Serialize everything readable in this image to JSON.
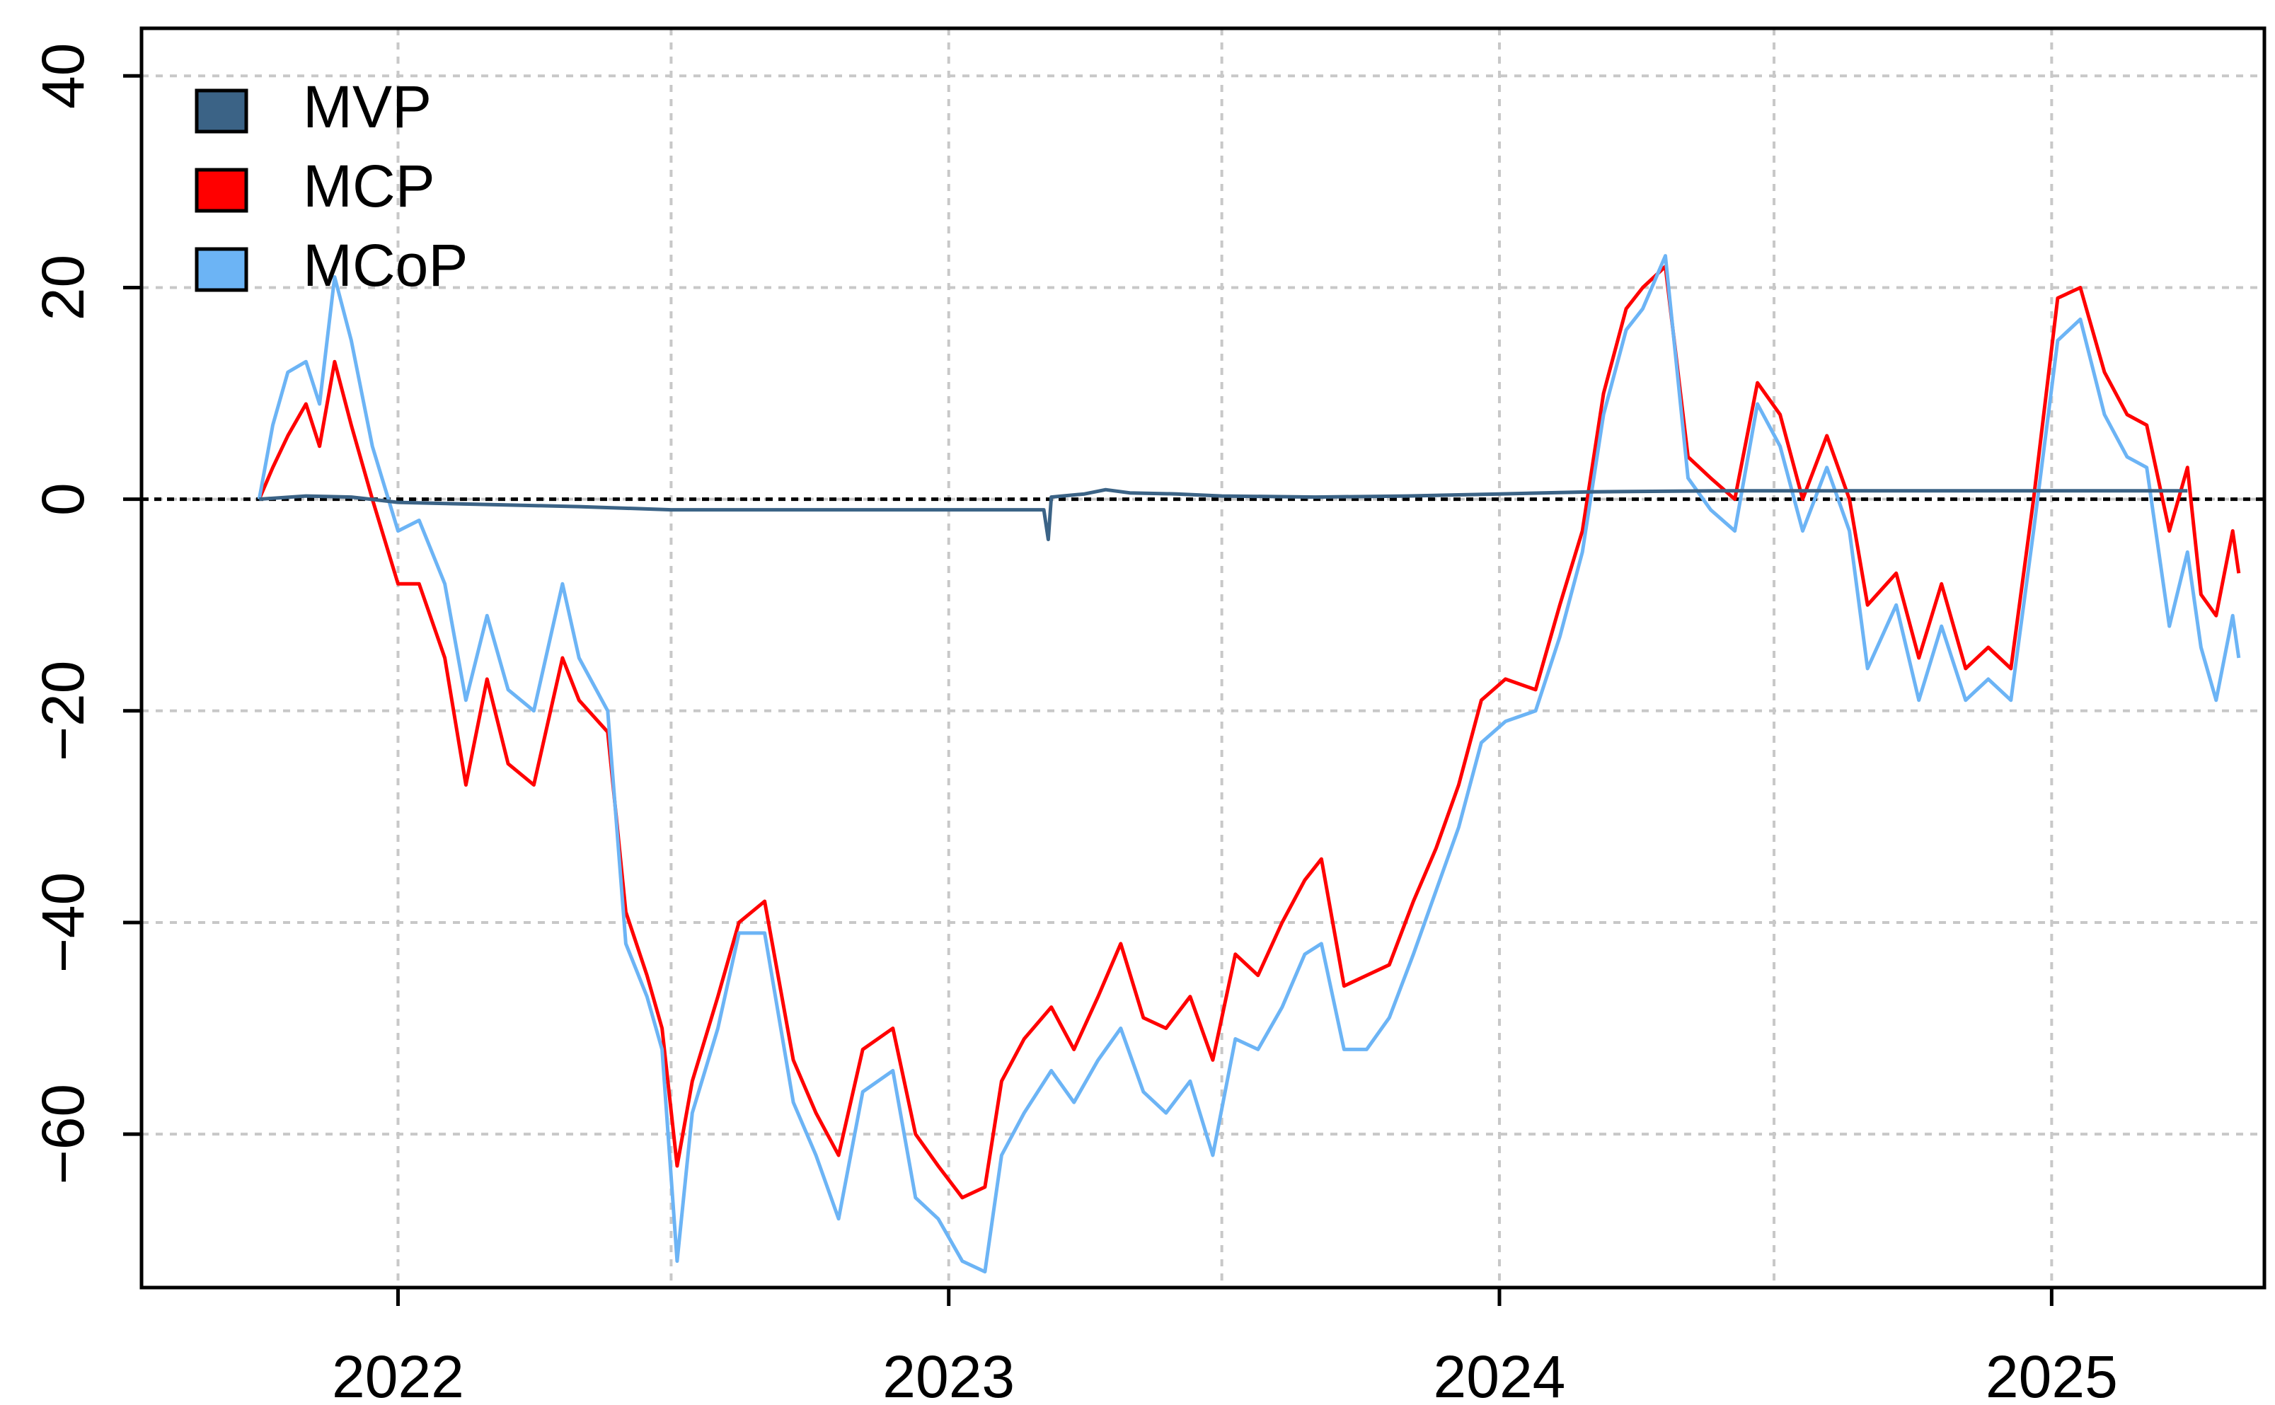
{
  "chart_data": {
    "type": "line",
    "title": "",
    "xlabel": "",
    "ylabel": "",
    "xlim": [
      "2021-07-15",
      "2025-05-22"
    ],
    "ylim": [
      -74.5,
      44.5
    ],
    "x_ticks": [
      "2022",
      "2023",
      "2024",
      "2025"
    ],
    "y_ticks": [
      40,
      20,
      0,
      -20,
      -40,
      -60
    ],
    "y_tick_labels": [
      "40",
      "20",
      "0",
      "−20",
      "−40",
      "−60"
    ],
    "grid": true,
    "legend_position": "top-left",
    "reference_line": 0,
    "series": [
      {
        "name": "MVP",
        "color": "#3B6386",
        "points": [
          [
            "2021-10-01",
            0.0
          ],
          [
            "2021-11-01",
            0.3
          ],
          [
            "2021-12-01",
            0.2
          ],
          [
            "2022-01-01",
            -0.3
          ],
          [
            "2022-03-01",
            -0.5
          ],
          [
            "2022-05-01",
            -0.7
          ],
          [
            "2022-07-01",
            -1.0
          ],
          [
            "2022-09-01",
            -1.0
          ],
          [
            "2022-11-01",
            -1.0
          ],
          [
            "2023-01-01",
            -1.0
          ],
          [
            "2023-03-05",
            -1.0
          ],
          [
            "2023-03-08",
            -3.8
          ],
          [
            "2023-03-10",
            0.2
          ],
          [
            "2023-04-01",
            0.5
          ],
          [
            "2023-04-15",
            0.9
          ],
          [
            "2023-05-01",
            0.6
          ],
          [
            "2023-06-01",
            0.5
          ],
          [
            "2023-07-01",
            0.3
          ],
          [
            "2023-09-01",
            0.2
          ],
          [
            "2023-11-01",
            0.3
          ],
          [
            "2024-01-01",
            0.5
          ],
          [
            "2024-03-01",
            0.7
          ],
          [
            "2024-06-01",
            0.8
          ],
          [
            "2024-09-01",
            0.8
          ],
          [
            "2024-12-01",
            0.8
          ],
          [
            "2025-02-01",
            0.8
          ],
          [
            "2025-04-01",
            0.8
          ]
        ]
      },
      {
        "name": "MCP",
        "color": "#FF0000",
        "points": [
          [
            "2021-10-01",
            0.0
          ],
          [
            "2021-10-10",
            3.0
          ],
          [
            "2021-10-20",
            6.0
          ],
          [
            "2021-11-01",
            9.0
          ],
          [
            "2021-11-10",
            5.0
          ],
          [
            "2021-11-20",
            13.0
          ],
          [
            "2021-12-01",
            7.0
          ],
          [
            "2021-12-15",
            0.0
          ],
          [
            "2022-01-01",
            -8.0
          ],
          [
            "2022-01-15",
            -8.0
          ],
          [
            "2022-02-01",
            -15.0
          ],
          [
            "2022-02-15",
            -27.0
          ],
          [
            "2022-03-01",
            -17.0
          ],
          [
            "2022-03-15",
            -25.0
          ],
          [
            "2022-04-01",
            -27.0
          ],
          [
            "2022-04-20",
            -15.0
          ],
          [
            "2022-05-01",
            -19.0
          ],
          [
            "2022-05-20",
            -22.0
          ],
          [
            "2022-06-01",
            -39.0
          ],
          [
            "2022-06-15",
            -45.0
          ],
          [
            "2022-06-25",
            -50.0
          ],
          [
            "2022-07-05",
            -63.0
          ],
          [
            "2022-07-15",
            -55.0
          ],
          [
            "2022-08-01",
            -47.0
          ],
          [
            "2022-08-15",
            -40.0
          ],
          [
            "2022-09-01",
            -38.0
          ],
          [
            "2022-09-20",
            -53.0
          ],
          [
            "2022-10-05",
            -58.0
          ],
          [
            "2022-10-20",
            -62.0
          ],
          [
            "2022-11-05",
            -52.0
          ],
          [
            "2022-11-25",
            -50.0
          ],
          [
            "2022-12-10",
            -60.0
          ],
          [
            "2022-12-25",
            -63.0
          ],
          [
            "2023-01-10",
            -66.0
          ],
          [
            "2023-01-25",
            -65.0
          ],
          [
            "2023-02-05",
            -55.0
          ],
          [
            "2023-02-20",
            -51.0
          ],
          [
            "2023-03-10",
            -48.0
          ],
          [
            "2023-03-25",
            -52.0
          ],
          [
            "2023-04-10",
            -47.0
          ],
          [
            "2023-04-25",
            -42.0
          ],
          [
            "2023-05-10",
            -49.0
          ],
          [
            "2023-05-25",
            -50.0
          ],
          [
            "2023-06-10",
            -47.0
          ],
          [
            "2023-06-25",
            -53.0
          ],
          [
            "2023-07-10",
            -43.0
          ],
          [
            "2023-07-25",
            -45.0
          ],
          [
            "2023-08-10",
            -40.0
          ],
          [
            "2023-08-25",
            -36.0
          ],
          [
            "2023-09-05",
            -34.0
          ],
          [
            "2023-09-20",
            -46.0
          ],
          [
            "2023-10-05",
            -45.0
          ],
          [
            "2023-10-20",
            -44.0
          ],
          [
            "2023-11-05",
            -38.0
          ],
          [
            "2023-11-20",
            -33.0
          ],
          [
            "2023-12-05",
            -27.0
          ],
          [
            "2023-12-20",
            -19.0
          ],
          [
            "2024-01-05",
            -17.0
          ],
          [
            "2024-01-25",
            -18.0
          ],
          [
            "2024-02-10",
            -10.0
          ],
          [
            "2024-02-25",
            -3.0
          ],
          [
            "2024-03-10",
            10.0
          ],
          [
            "2024-03-25",
            18.0
          ],
          [
            "2024-04-05",
            20.0
          ],
          [
            "2024-04-20",
            22.0
          ],
          [
            "2024-05-05",
            4.0
          ],
          [
            "2024-05-20",
            2.0
          ],
          [
            "2024-06-05",
            0.0
          ],
          [
            "2024-06-20",
            11.0
          ],
          [
            "2024-07-05",
            8.0
          ],
          [
            "2024-07-20",
            0.0
          ],
          [
            "2024-08-05",
            6.0
          ],
          [
            "2024-08-20",
            0.0
          ],
          [
            "2024-09-01",
            -10.0
          ],
          [
            "2024-09-20",
            -7.0
          ],
          [
            "2024-10-05",
            -15.0
          ],
          [
            "2024-10-20",
            -8.0
          ],
          [
            "2024-11-05",
            -16.0
          ],
          [
            "2024-11-20",
            -14.0
          ],
          [
            "2024-12-05",
            -16.0
          ],
          [
            "2024-12-20",
            0.0
          ],
          [
            "2025-01-05",
            19.0
          ],
          [
            "2025-01-20",
            20.0
          ],
          [
            "2025-02-05",
            12.0
          ],
          [
            "2025-02-20",
            8.0
          ],
          [
            "2025-03-05",
            7.0
          ],
          [
            "2025-03-20",
            -3.0
          ],
          [
            "2025-04-01",
            3.0
          ],
          [
            "2025-04-10",
            -9.0
          ],
          [
            "2025-04-20",
            -11.0
          ],
          [
            "2025-05-01",
            -3.0
          ],
          [
            "2025-05-05",
            -7.0
          ]
        ]
      },
      {
        "name": "MCoP",
        "color": "#6CB4F5",
        "points": [
          [
            "2021-10-01",
            0.0
          ],
          [
            "2021-10-10",
            7.0
          ],
          [
            "2021-10-20",
            12.0
          ],
          [
            "2021-11-01",
            13.0
          ],
          [
            "2021-11-10",
            9.0
          ],
          [
            "2021-11-20",
            21.0
          ],
          [
            "2021-12-01",
            15.0
          ],
          [
            "2021-12-15",
            5.0
          ],
          [
            "2022-01-01",
            -3.0
          ],
          [
            "2022-01-15",
            -2.0
          ],
          [
            "2022-02-01",
            -8.0
          ],
          [
            "2022-02-15",
            -19.0
          ],
          [
            "2022-03-01",
            -11.0
          ],
          [
            "2022-03-15",
            -18.0
          ],
          [
            "2022-04-01",
            -20.0
          ],
          [
            "2022-04-20",
            -8.0
          ],
          [
            "2022-05-01",
            -15.0
          ],
          [
            "2022-05-20",
            -20.0
          ],
          [
            "2022-06-01",
            -42.0
          ],
          [
            "2022-06-15",
            -47.0
          ],
          [
            "2022-06-25",
            -52.0
          ],
          [
            "2022-07-05",
            -72.0
          ],
          [
            "2022-07-15",
            -58.0
          ],
          [
            "2022-08-01",
            -50.0
          ],
          [
            "2022-08-15",
            -41.0
          ],
          [
            "2022-09-01",
            -41.0
          ],
          [
            "2022-09-20",
            -57.0
          ],
          [
            "2022-10-05",
            -62.0
          ],
          [
            "2022-10-20",
            -68.0
          ],
          [
            "2022-11-05",
            -56.0
          ],
          [
            "2022-11-25",
            -54.0
          ],
          [
            "2022-12-10",
            -66.0
          ],
          [
            "2022-12-25",
            -68.0
          ],
          [
            "2023-01-10",
            -72.0
          ],
          [
            "2023-01-25",
            -73.0
          ],
          [
            "2023-02-05",
            -62.0
          ],
          [
            "2023-02-20",
            -58.0
          ],
          [
            "2023-03-10",
            -54.0
          ],
          [
            "2023-03-25",
            -57.0
          ],
          [
            "2023-04-10",
            -53.0
          ],
          [
            "2023-04-25",
            -50.0
          ],
          [
            "2023-05-10",
            -56.0
          ],
          [
            "2023-05-25",
            -58.0
          ],
          [
            "2023-06-10",
            -55.0
          ],
          [
            "2023-06-25",
            -62.0
          ],
          [
            "2023-07-10",
            -51.0
          ],
          [
            "2023-07-25",
            -52.0
          ],
          [
            "2023-08-10",
            -48.0
          ],
          [
            "2023-08-25",
            -43.0
          ],
          [
            "2023-09-05",
            -42.0
          ],
          [
            "2023-09-20",
            -52.0
          ],
          [
            "2023-10-05",
            -52.0
          ],
          [
            "2023-10-20",
            -49.0
          ],
          [
            "2023-11-05",
            -43.0
          ],
          [
            "2023-11-20",
            -37.0
          ],
          [
            "2023-12-05",
            -31.0
          ],
          [
            "2023-12-20",
            -23.0
          ],
          [
            "2024-01-05",
            -21.0
          ],
          [
            "2024-01-25",
            -20.0
          ],
          [
            "2024-02-10",
            -13.0
          ],
          [
            "2024-02-25",
            -5.0
          ],
          [
            "2024-03-10",
            8.0
          ],
          [
            "2024-03-25",
            16.0
          ],
          [
            "2024-04-05",
            18.0
          ],
          [
            "2024-04-20",
            23.0
          ],
          [
            "2024-05-05",
            2.0
          ],
          [
            "2024-05-20",
            -1.0
          ],
          [
            "2024-06-05",
            -3.0
          ],
          [
            "2024-06-20",
            9.0
          ],
          [
            "2024-07-05",
            5.0
          ],
          [
            "2024-07-20",
            -3.0
          ],
          [
            "2024-08-05",
            3.0
          ],
          [
            "2024-08-20",
            -3.0
          ],
          [
            "2024-09-01",
            -16.0
          ],
          [
            "2024-09-20",
            -10.0
          ],
          [
            "2024-10-05",
            -19.0
          ],
          [
            "2024-10-20",
            -12.0
          ],
          [
            "2024-11-05",
            -19.0
          ],
          [
            "2024-11-20",
            -17.0
          ],
          [
            "2024-12-05",
            -19.0
          ],
          [
            "2024-12-20",
            -3.0
          ],
          [
            "2025-01-05",
            15.0
          ],
          [
            "2025-01-20",
            17.0
          ],
          [
            "2025-02-05",
            8.0
          ],
          [
            "2025-02-20",
            4.0
          ],
          [
            "2025-03-05",
            3.0
          ],
          [
            "2025-03-20",
            -12.0
          ],
          [
            "2025-04-01",
            -5.0
          ],
          [
            "2025-04-10",
            -14.0
          ],
          [
            "2025-04-20",
            -19.0
          ],
          [
            "2025-05-01",
            -11.0
          ],
          [
            "2025-05-05",
            -15.0
          ]
        ]
      }
    ]
  }
}
